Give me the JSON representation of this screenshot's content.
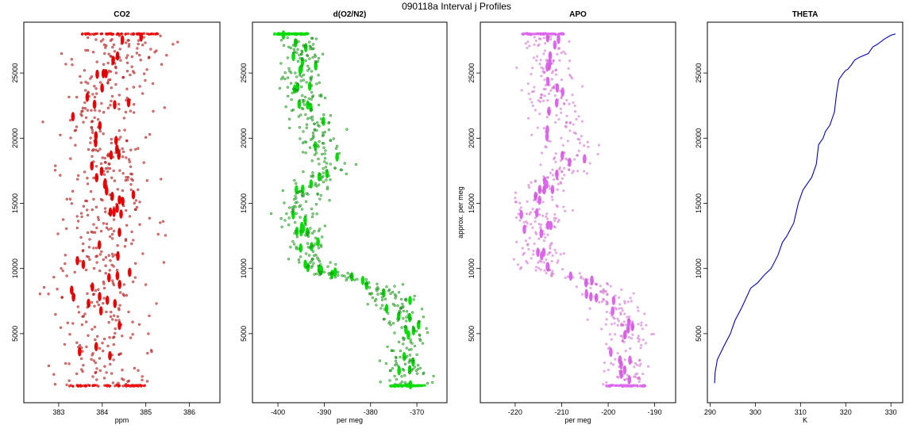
{
  "page": {
    "title": "090118a   Interval j Profiles"
  },
  "chart_data": [
    {
      "type": "scatter",
      "title": "CO2",
      "xlabel": "ppm",
      "ylabel": "",
      "xlim": [
        382.2,
        386.7
      ],
      "ylim": [
        -300,
        28900
      ],
      "xticks": [
        383,
        384,
        385,
        386
      ],
      "yticks": [
        5000,
        10000,
        15000,
        20000,
        25000
      ],
      "grid": false,
      "legend": "none",
      "marker": "open circle",
      "color": "#ee0000",
      "profile": [
        [
          1000,
          384.1
        ],
        [
          3000,
          384.0
        ],
        [
          5000,
          383.9
        ],
        [
          7000,
          383.9
        ],
        [
          9000,
          383.8
        ],
        [
          11000,
          384.0
        ],
        [
          13000,
          384.1
        ],
        [
          15000,
          384.1
        ],
        [
          17000,
          384.2
        ],
        [
          19000,
          384.0
        ],
        [
          21000,
          384.0
        ],
        [
          23000,
          384.2
        ],
        [
          25000,
          384.4
        ],
        [
          27000,
          384.5
        ],
        [
          28000,
          384.4
        ]
      ],
      "spread": 0.55
    },
    {
      "type": "scatter",
      "title": "d(O2/N2)",
      "xlabel": "per meg",
      "ylabel": "",
      "xlim": [
        -405.5,
        -363.5
      ],
      "ylim": [
        -300,
        28900
      ],
      "xticks": [
        -400,
        -390,
        -380,
        -370
      ],
      "yticks": [
        5000,
        10000,
        15000,
        20000,
        25000
      ],
      "grid": false,
      "legend": "none",
      "marker": "open circle",
      "color": "#00dd00",
      "profile": [
        [
          1000,
          -372.0
        ],
        [
          3000,
          -373.0
        ],
        [
          4500,
          -371.0
        ],
        [
          6000,
          -373.0
        ],
        [
          7500,
          -374.5
        ],
        [
          8500,
          -378.0
        ],
        [
          9300,
          -384.0
        ],
        [
          10000,
          -393.0
        ],
        [
          12000,
          -393.0
        ],
        [
          14000,
          -396.0
        ],
        [
          16000,
          -394.0
        ],
        [
          18000,
          -388.0
        ],
        [
          19500,
          -391.0
        ],
        [
          21000,
          -392.0
        ],
        [
          23000,
          -394.0
        ],
        [
          25000,
          -395.0
        ],
        [
          26500,
          -394.0
        ],
        [
          28000,
          -397.0
        ]
      ],
      "spread": 2.4
    },
    {
      "type": "scatter",
      "title": "APO",
      "xlabel": "per meg",
      "ylabel": "approx. per meg",
      "xlim": [
        -227.5,
        -185.5
      ],
      "ylim": [
        -300,
        28900
      ],
      "xticks": [
        -220,
        -210,
        -200,
        -190
      ],
      "yticks": [
        5000,
        10000,
        15000,
        20000,
        25000
      ],
      "grid": false,
      "legend": "none",
      "marker": "open circle",
      "color": "#dd66ee",
      "profile": [
        [
          1000,
          -196.0
        ],
        [
          3000,
          -197.0
        ],
        [
          4500,
          -195.0
        ],
        [
          6000,
          -197.0
        ],
        [
          7500,
          -199.0
        ],
        [
          8500,
          -202.0
        ],
        [
          9300,
          -207.0
        ],
        [
          10000,
          -214.0
        ],
        [
          12000,
          -214.0
        ],
        [
          14000,
          -216.0
        ],
        [
          16000,
          -214.0
        ],
        [
          18000,
          -208.0
        ],
        [
          19500,
          -210.0
        ],
        [
          21000,
          -210.0
        ],
        [
          23000,
          -212.0
        ],
        [
          25000,
          -213.0
        ],
        [
          26500,
          -212.0
        ],
        [
          28000,
          -214.0
        ]
      ],
      "spread": 2.8
    },
    {
      "type": "line",
      "title": "THETA",
      "xlabel": "K",
      "ylabel": "",
      "xlim": [
        289.4,
        332.6
      ],
      "ylim": [
        -300,
        28900
      ],
      "xticks": [
        290,
        300,
        310,
        320,
        330
      ],
      "yticks": [
        5000,
        10000,
        15000,
        20000,
        25000
      ],
      "grid": false,
      "legend": "none",
      "color": "#0000cc",
      "x": [
        291.0,
        291.1,
        291.6,
        293.0,
        294.5,
        295.5,
        297.0,
        299.0,
        300.5,
        302.0,
        303.5,
        305.0,
        306.0,
        307.0,
        308.5,
        309.5,
        310.5,
        311.5,
        312.5,
        313.5,
        314.0,
        315.0,
        315.5,
        316.5,
        317.5,
        318.0,
        318.5,
        319.5,
        320.0,
        320.5,
        321.2,
        322.0,
        323.0,
        325.0,
        326.0,
        327.0,
        328.5,
        330.0,
        331.0
      ],
      "y": [
        1200,
        2000,
        3000,
        4000,
        5000,
        6000,
        7000,
        8500,
        8900,
        9500,
        10000,
        11000,
        12000,
        12500,
        13500,
        15000,
        16000,
        16500,
        17000,
        18000,
        19500,
        20000,
        20500,
        21000,
        22000,
        23500,
        24500,
        25000,
        25200,
        25300,
        25600,
        26000,
        26200,
        26500,
        27000,
        27200,
        27600,
        27900,
        28000
      ]
    }
  ]
}
